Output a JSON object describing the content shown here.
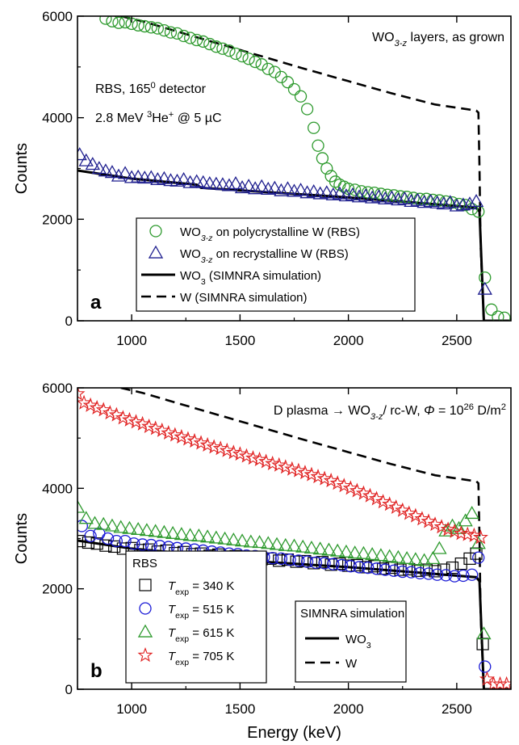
{
  "chart_data": [
    {
      "panel": "a",
      "type": "scatter",
      "xlabel": "",
      "ylabel": "Counts",
      "xlim": [
        750,
        2750
      ],
      "ylim": [
        0,
        6000
      ],
      "x_ticks": [
        1000,
        1500,
        2000,
        2500
      ],
      "y_ticks": [
        0,
        2000,
        4000,
        6000
      ],
      "annotation_lines": [
        {
          "text": "WO",
          "sub": "3-z",
          "tail": " layers, as grown"
        },
        {
          "text": "RBS, 165",
          "sup": "0",
          "tail": " detector"
        },
        {
          "text": "2.8 MeV ",
          "sup": "3",
          "tail": "He",
          "sup2": "+",
          "tail2": " @ 5 µC"
        }
      ],
      "legend": [
        {
          "marker": "circle",
          "color": "#2e9a2e",
          "text": "WO",
          "sub": "3-z",
          "tail": " on polycrystalline W (RBS)"
        },
        {
          "marker": "triangle",
          "color": "#1f1f8f",
          "text": "WO",
          "sub": "3-z",
          "tail": " on recrystalline W (RBS)"
        },
        {
          "marker": "solid",
          "color": "#000000",
          "text": "WO",
          "sub": "3",
          "tail": " (SIMNRA simulation)"
        },
        {
          "marker": "dashed",
          "color": "#000000",
          "text": "W (SIMNRA simulation)",
          "sub": "",
          "tail": ""
        }
      ],
      "series": [
        {
          "name": "WO3-z on polycrystalline W (RBS)",
          "marker": "circle",
          "color": "#2e9a2e",
          "x": [
            880,
            910,
            940,
            970,
            1000,
            1030,
            1060,
            1090,
            1120,
            1150,
            1180,
            1210,
            1240,
            1270,
            1300,
            1330,
            1360,
            1390,
            1420,
            1450,
            1480,
            1510,
            1540,
            1570,
            1600,
            1630,
            1660,
            1690,
            1720,
            1750,
            1780,
            1810,
            1840,
            1860,
            1880,
            1900,
            1920,
            1940,
            1960,
            1980,
            2000,
            2030,
            2060,
            2090,
            2120,
            2150,
            2180,
            2210,
            2240,
            2270,
            2300,
            2330,
            2360,
            2390,
            2420,
            2450,
            2480,
            2510,
            2540,
            2570,
            2600,
            2630,
            2660,
            2690,
            2720
          ],
          "y": [
            5950,
            5900,
            5870,
            5880,
            5850,
            5820,
            5800,
            5780,
            5760,
            5720,
            5680,
            5660,
            5610,
            5570,
            5530,
            5500,
            5450,
            5400,
            5360,
            5320,
            5260,
            5210,
            5160,
            5100,
            5050,
            4960,
            4900,
            4800,
            4700,
            4560,
            4420,
            4170,
            3800,
            3450,
            3200,
            3000,
            2850,
            2740,
            2680,
            2640,
            2600,
            2580,
            2550,
            2530,
            2520,
            2500,
            2480,
            2470,
            2450,
            2440,
            2420,
            2400,
            2400,
            2380,
            2370,
            2350,
            2330,
            2300,
            2280,
            2200,
            2150,
            850,
            220,
            80,
            60
          ]
        },
        {
          "name": "WO3-z on recrystalline W (RBS)",
          "marker": "triangle",
          "color": "#1f1f8f",
          "x": [
            760,
            790,
            820,
            850,
            880,
            910,
            940,
            970,
            1000,
            1030,
            1060,
            1090,
            1120,
            1150,
            1180,
            1210,
            1240,
            1270,
            1300,
            1330,
            1360,
            1390,
            1420,
            1450,
            1480,
            1510,
            1540,
            1570,
            1600,
            1630,
            1660,
            1690,
            1720,
            1750,
            1780,
            1810,
            1840,
            1870,
            1900,
            1930,
            1960,
            1990,
            2020,
            2050,
            2080,
            2110,
            2140,
            2170,
            2200,
            2230,
            2260,
            2290,
            2320,
            2350,
            2380,
            2410,
            2440,
            2470,
            2500,
            2530,
            2560,
            2590,
            2630
          ],
          "y": [
            3270,
            3150,
            3080,
            3000,
            2950,
            2920,
            2850,
            2900,
            2820,
            2830,
            2810,
            2820,
            2780,
            2800,
            2760,
            2750,
            2780,
            2720,
            2740,
            2720,
            2700,
            2690,
            2680,
            2660,
            2700,
            2620,
            2650,
            2600,
            2640,
            2590,
            2610,
            2560,
            2600,
            2550,
            2570,
            2520,
            2540,
            2500,
            2520,
            2480,
            2500,
            2460,
            2480,
            2440,
            2460,
            2420,
            2440,
            2400,
            2420,
            2380,
            2400,
            2350,
            2370,
            2330,
            2350,
            2320,
            2300,
            2330,
            2260,
            2280,
            2300,
            2350,
            620
          ]
        },
        {
          "name": "WO3 (SIMNRA simulation)",
          "marker": "solid",
          "color": "#000000",
          "x": [
            750,
            1000,
            1300,
            1320,
            1600,
            2000,
            2300,
            2590,
            2605,
            2625,
            2750
          ],
          "y": [
            2960,
            2800,
            2680,
            2620,
            2540,
            2430,
            2330,
            2230,
            2150,
            0,
            0
          ]
        },
        {
          "name": "W (SIMNRA simulation)",
          "marker": "dashed",
          "color": "#000000",
          "x": [
            950,
            1050,
            1200,
            1400,
            1600,
            1800,
            2000,
            2200,
            2400,
            2590,
            2600,
            2605,
            2610,
            2625,
            2750
          ],
          "y": [
            6000,
            5900,
            5710,
            5460,
            5210,
            4960,
            4720,
            4480,
            4260,
            4140,
            4100,
            3000,
            1500,
            0,
            0
          ]
        }
      ]
    },
    {
      "panel": "b",
      "type": "scatter",
      "xlabel": "Energy (keV)",
      "ylabel": "Counts",
      "xlim": [
        750,
        2750
      ],
      "ylim": [
        0,
        6000
      ],
      "x_ticks": [
        1000,
        1500,
        2000,
        2500
      ],
      "y_ticks": [
        0,
        2000,
        4000,
        6000
      ],
      "annotation": {
        "text": "D plasma → WO",
        "sub": "3-z",
        "mid": "/ rc-W, ",
        "phi": "Φ",
        "eq": " = 10",
        "sup": "26",
        "tail": " D/m",
        "sup2": "2"
      },
      "legend_left_title": "RBS",
      "legend_left": [
        {
          "marker": "square",
          "color": "#000000",
          "label": "T",
          "sub": "exp",
          "value": " = 340 K"
        },
        {
          "marker": "circle",
          "color": "#1a1ad6",
          "label": "T",
          "sub": "exp",
          "value": " = 515 K"
        },
        {
          "marker": "triangle",
          "color": "#2e9a2e",
          "label": "T",
          "sub": "exp",
          "value": " = 615 K"
        },
        {
          "marker": "star",
          "color": "#e02020",
          "label": "T",
          "sub": "exp",
          "value": " = 705 K"
        }
      ],
      "legend_right_title": "SIMNRA simulation",
      "legend_right": [
        {
          "marker": "solid",
          "text": "WO",
          "sub": "3"
        },
        {
          "marker": "dashed",
          "text": "W",
          "sub": ""
        }
      ],
      "series": [
        {
          "name": "Texp = 340 K",
          "marker": "square",
          "color": "#000000",
          "x": [
            760,
            800,
            840,
            880,
            920,
            960,
            1000,
            1040,
            1080,
            1120,
            1160,
            1200,
            1240,
            1280,
            1320,
            1360,
            1400,
            1440,
            1480,
            1520,
            1560,
            1600,
            1640,
            1680,
            1720,
            1760,
            1800,
            1840,
            1880,
            1920,
            1960,
            2000,
            2040,
            2080,
            2120,
            2160,
            2200,
            2240,
            2280,
            2320,
            2360,
            2400,
            2440,
            2480,
            2520,
            2560,
            2590,
            2620
          ],
          "y": [
            2950,
            2920,
            2900,
            2860,
            2840,
            2800,
            2810,
            2770,
            2780,
            2740,
            2760,
            2710,
            2730,
            2690,
            2700,
            2660,
            2680,
            2640,
            2650,
            2610,
            2630,
            2590,
            2600,
            2560,
            2580,
            2540,
            2550,
            2510,
            2530,
            2480,
            2500,
            2460,
            2470,
            2430,
            2450,
            2400,
            2420,
            2380,
            2390,
            2360,
            2380,
            2350,
            2380,
            2420,
            2500,
            2600,
            2700,
            900
          ]
        },
        {
          "name": "Texp = 515 K",
          "marker": "circle",
          "color": "#1a1ad6",
          "x": [
            770,
            810,
            850,
            890,
            930,
            970,
            1010,
            1050,
            1090,
            1130,
            1170,
            1210,
            1250,
            1290,
            1330,
            1370,
            1410,
            1450,
            1490,
            1530,
            1570,
            1610,
            1650,
            1690,
            1730,
            1770,
            1810,
            1850,
            1890,
            1930,
            1970,
            2010,
            2050,
            2090,
            2130,
            2170,
            2210,
            2250,
            2290,
            2330,
            2370,
            2410,
            2450,
            2490,
            2530,
            2570,
            2600,
            2630
          ],
          "y": [
            3250,
            3050,
            3100,
            3000,
            2950,
            2950,
            2900,
            2880,
            2870,
            2850,
            2830,
            2810,
            2800,
            2780,
            2760,
            2740,
            2720,
            2700,
            2690,
            2660,
            2650,
            2630,
            2610,
            2600,
            2580,
            2560,
            2540,
            2520,
            2510,
            2490,
            2470,
            2450,
            2430,
            2420,
            2400,
            2380,
            2360,
            2340,
            2330,
            2310,
            2300,
            2280,
            2270,
            2250,
            2260,
            2280,
            2620,
            450
          ]
        },
        {
          "name": "Texp = 615 K",
          "marker": "triangle",
          "color": "#2e9a2e",
          "x": [
            750,
            790,
            830,
            870,
            910,
            950,
            990,
            1030,
            1070,
            1110,
            1150,
            1190,
            1230,
            1270,
            1310,
            1350,
            1390,
            1430,
            1470,
            1510,
            1550,
            1590,
            1630,
            1670,
            1710,
            1750,
            1790,
            1830,
            1870,
            1910,
            1950,
            1990,
            2030,
            2070,
            2110,
            2150,
            2190,
            2230,
            2270,
            2310,
            2350,
            2390,
            2420,
            2450,
            2480,
            2510,
            2540,
            2570,
            2600,
            2625
          ],
          "y": [
            3620,
            3400,
            3300,
            3280,
            3250,
            3220,
            3200,
            3180,
            3160,
            3140,
            3120,
            3100,
            3080,
            3060,
            3050,
            3030,
            3010,
            2990,
            2970,
            2950,
            2930,
            2920,
            2900,
            2880,
            2860,
            2850,
            2830,
            2810,
            2790,
            2770,
            2750,
            2730,
            2710,
            2700,
            2680,
            2660,
            2640,
            2620,
            2600,
            2580,
            2560,
            2600,
            2800,
            3150,
            3250,
            3200,
            3350,
            3500,
            2900,
            1100
          ]
        },
        {
          "name": "Texp = 705 K",
          "marker": "star",
          "color": "#e02020",
          "x": [
            750,
            780,
            810,
            840,
            870,
            900,
            930,
            960,
            990,
            1020,
            1050,
            1080,
            1110,
            1140,
            1170,
            1200,
            1230,
            1260,
            1290,
            1320,
            1350,
            1380,
            1410,
            1440,
            1470,
            1500,
            1530,
            1560,
            1590,
            1620,
            1650,
            1680,
            1710,
            1740,
            1770,
            1800,
            1830,
            1860,
            1890,
            1920,
            1950,
            1980,
            2010,
            2040,
            2070,
            2100,
            2130,
            2160,
            2190,
            2220,
            2250,
            2280,
            2310,
            2340,
            2370,
            2400,
            2430,
            2460,
            2490,
            2520,
            2550,
            2580,
            2610,
            2640,
            2670,
            2700,
            2730
          ],
          "y": [
            5880,
            5700,
            5650,
            5600,
            5560,
            5500,
            5460,
            5400,
            5360,
            5320,
            5280,
            5230,
            5190,
            5150,
            5100,
            5060,
            5020,
            4980,
            4940,
            4900,
            4860,
            4820,
            4790,
            4750,
            4710,
            4680,
            4640,
            4600,
            4570,
            4530,
            4490,
            4460,
            4420,
            4380,
            4350,
            4310,
            4270,
            4230,
            4190,
            4150,
            4100,
            4050,
            4000,
            3950,
            3900,
            3850,
            3790,
            3730,
            3680,
            3620,
            3560,
            3500,
            3450,
            3390,
            3340,
            3280,
            3230,
            3180,
            3140,
            3100,
            3080,
            3060,
            3020,
            200,
            100,
            100,
            100
          ]
        },
        {
          "name": "WO3 (SIMNRA simulation)",
          "marker": "solid",
          "color": "#000000",
          "x": [
            750,
            1000,
            1300,
            1320,
            1600,
            2000,
            2300,
            2590,
            2605,
            2625,
            2750
          ],
          "y": [
            2960,
            2800,
            2680,
            2620,
            2540,
            2430,
            2330,
            2230,
            2150,
            0,
            0
          ]
        },
        {
          "name": "W (SIMNRA simulation)",
          "marker": "dashed",
          "color": "#000000",
          "x": [
            950,
            1050,
            1200,
            1400,
            1600,
            1800,
            2000,
            2200,
            2400,
            2590,
            2600,
            2605,
            2610,
            2625,
            2750
          ],
          "y": [
            6000,
            5900,
            5710,
            5460,
            5210,
            4960,
            4720,
            4480,
            4260,
            4140,
            4100,
            3000,
            1500,
            0,
            0
          ]
        }
      ]
    }
  ]
}
